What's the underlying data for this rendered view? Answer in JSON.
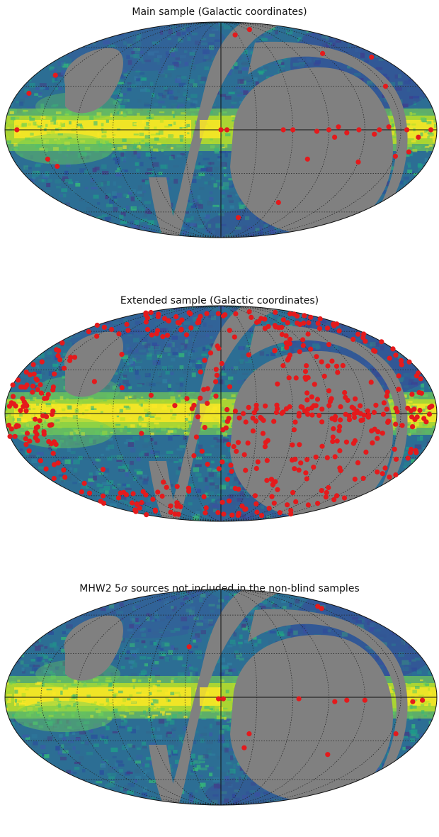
{
  "chart_data": [
    {
      "type": "scatter",
      "projection": "mollweide",
      "title": "Main sample (Galactic coordinates)",
      "marker_color": "#e41a1c",
      "background": "sky density map (viridis colormap) with grey masked regions",
      "graticule": true,
      "points_lonlat": [
        [
          -65,
          78
        ],
        [
          -25,
          72
        ],
        [
          -120,
          55
        ],
        [
          -170,
          52
        ],
        [
          -150,
          30
        ],
        [
          160,
          38
        ],
        [
          170,
          25
        ],
        [
          -175,
          0
        ],
        [
          -165,
          -5
        ],
        [
          -155,
          0
        ],
        [
          -140,
          2
        ],
        [
          -132,
          0
        ],
        [
          -128,
          -3
        ],
        [
          -115,
          0
        ],
        [
          -105,
          -2
        ],
        [
          -98,
          2
        ],
        [
          -95,
          -5
        ],
        [
          -90,
          0
        ],
        [
          -80,
          -1
        ],
        [
          -60,
          0
        ],
        [
          -52,
          0
        ],
        [
          -5,
          0
        ],
        [
          0,
          0
        ],
        [
          -160,
          -15
        ],
        [
          -150,
          -18
        ],
        [
          -120,
          -22
        ],
        [
          -75,
          -20
        ],
        [
          -65,
          -52
        ],
        [
          -25,
          -65
        ],
        [
          150,
          -20
        ],
        [
          145,
          -25
        ],
        [
          170,
          0
        ]
      ]
    },
    {
      "type": "scatter",
      "projection": "mollweide",
      "title": "Extended sample (Galactic coordinates)",
      "marker_color": "#e41a1c",
      "background": "sky density map (viridis colormap) with grey masked regions",
      "graticule": true,
      "points_lonlat": "dense distribution (~600 sources) across unmasked sky"
    },
    {
      "type": "scatter",
      "projection": "mollweide",
      "title": "MHW2 5$\\sigma$ sources not included in the non-blind samples",
      "marker_color": "#e41a1c",
      "background": "sky density map (viridis colormap) with grey masked regions",
      "graticule": true,
      "points_lonlat": [
        [
          -150,
          68
        ],
        [
          -148,
          66
        ],
        [
          30,
          35
        ],
        [
          -168,
          -2
        ],
        [
          -160,
          -3
        ],
        [
          -120,
          -2
        ],
        [
          -105,
          -2
        ],
        [
          -95,
          -3
        ],
        [
          -65,
          -1
        ],
        [
          -2,
          -1
        ],
        [
          2,
          -1
        ],
        [
          -25,
          -25
        ],
        [
          -22,
          -35
        ],
        [
          -155,
          -25
        ],
        [
          -105,
          -40
        ]
      ]
    }
  ],
  "titles": {
    "main": "Main sample (Galactic coordinates)",
    "extended": "Extended sample (Galactic coordinates)",
    "mhw2_prefix": "MHW2 5",
    "mhw2_sigma": "σ",
    "mhw2_suffix": " sources not included in the non-blind samples"
  }
}
